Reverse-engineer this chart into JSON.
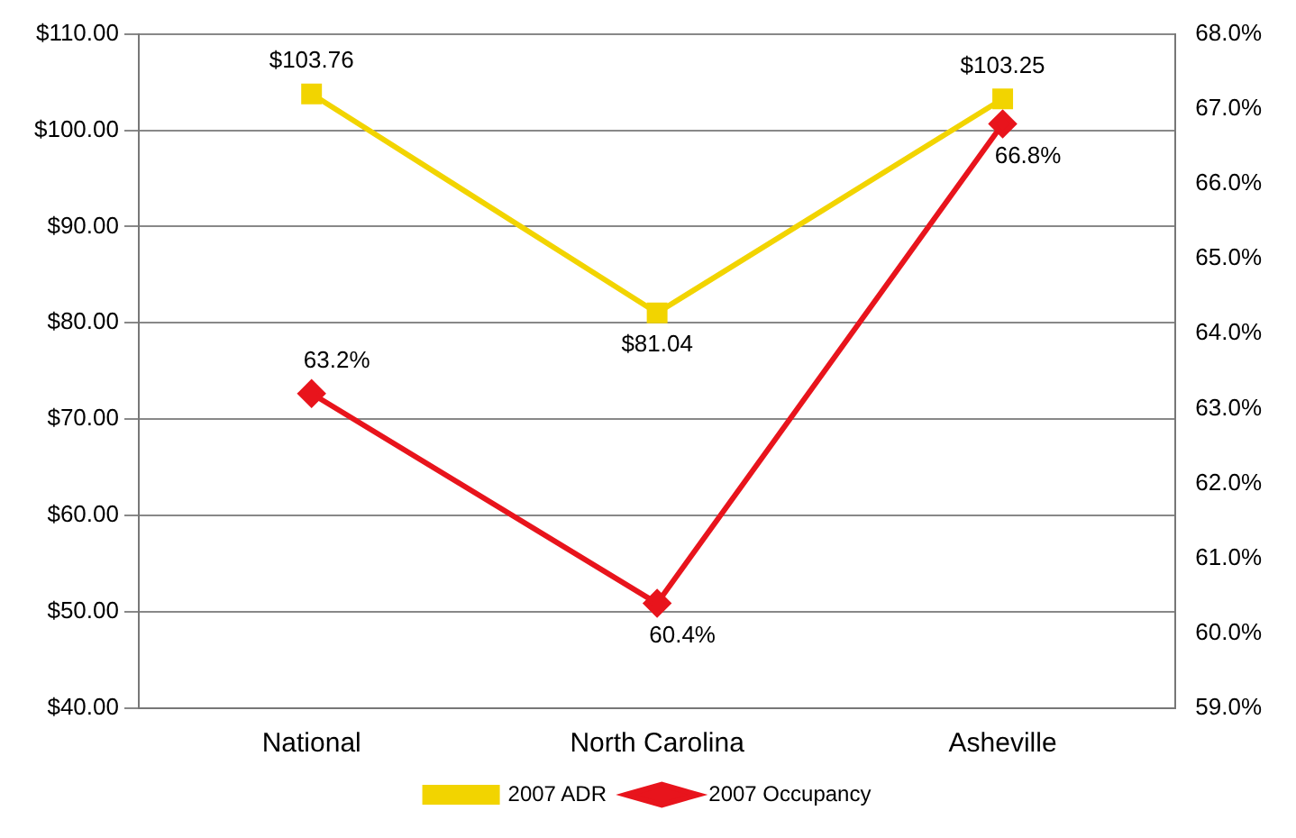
{
  "chart_data": {
    "type": "line",
    "categories": [
      "National",
      "North Carolina",
      "Asheville"
    ],
    "series": [
      {
        "name": "2007 ADR",
        "color": "#f2d400",
        "values": [
          103.76,
          81.04,
          103.25
        ],
        "value_labels": [
          "$103.76",
          "$81.04",
          "$103.25"
        ],
        "marker": "square"
      },
      {
        "name": "2007 Occupancy",
        "color": "#e8141c",
        "values": [
          63.2,
          60.4,
          66.8
        ],
        "value_labels": [
          "63.2%",
          "60.4%",
          "66.8%"
        ],
        "marker": "diamond",
        "axis": "y2"
      }
    ],
    "ylim": [
      40,
      110
    ],
    "yticks": [
      {
        "value": 40,
        "label": "$40.00"
      },
      {
        "value": 50,
        "label": "$50.00"
      },
      {
        "value": 60,
        "label": "$60.00"
      },
      {
        "value": 70,
        "label": "$70.00"
      },
      {
        "value": 80,
        "label": "$80.00"
      },
      {
        "value": 90,
        "label": "$90.00"
      },
      {
        "value": 100,
        "label": "$100.00"
      },
      {
        "value": 110,
        "label": "$110.00"
      }
    ],
    "y2lim": [
      59,
      68
    ],
    "y2ticks": [
      {
        "value": 59,
        "label": "59.0%"
      },
      {
        "value": 60,
        "label": "60.0%"
      },
      {
        "value": 61,
        "label": "61.0%"
      },
      {
        "value": 62,
        "label": "62.0%"
      },
      {
        "value": 63,
        "label": "63.0%"
      },
      {
        "value": 64,
        "label": "64.0%"
      },
      {
        "value": 65,
        "label": "65.0%"
      },
      {
        "value": 66,
        "label": "66.0%"
      },
      {
        "value": 67,
        "label": "67.0%"
      },
      {
        "value": 68,
        "label": "68.0%"
      }
    ],
    "grid": "y",
    "legend": "bottom",
    "line_style": "solid"
  }
}
